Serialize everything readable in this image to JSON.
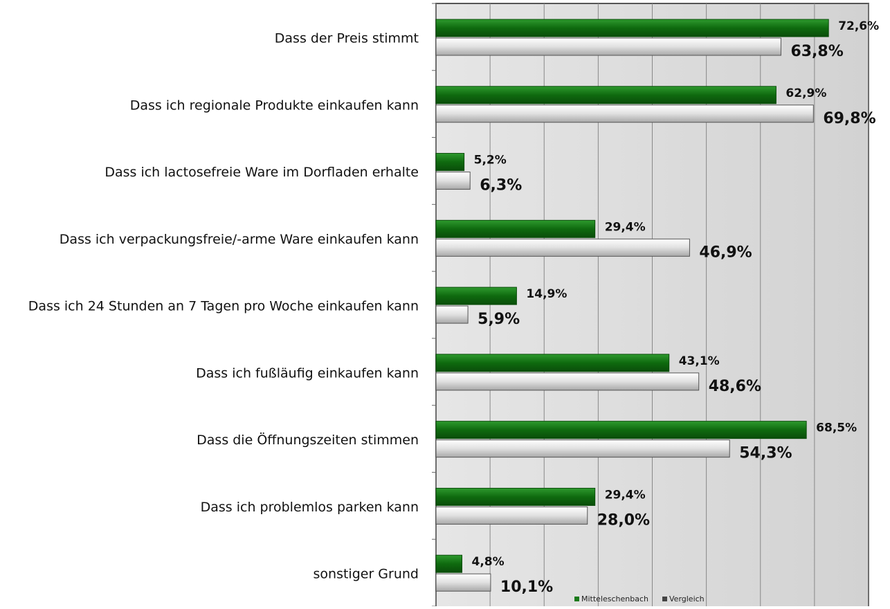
{
  "chart_data": {
    "type": "barh",
    "categories": [
      "Dass der Preis stimmt",
      "Dass ich regionale Produkte einkaufen kann",
      "Dass ich lactosefreie Ware im Dorfladen erhalte",
      "Dass ich verpackungsfreie/-arme Ware einkaufen kann",
      "Dass ich 24 Stunden an 7 Tagen pro Woche einkaufen kann",
      "Dass ich fußläufig einkaufen kann",
      "Dass die Öffnungszeiten stimmen",
      "Dass ich problemlos parken kann",
      "sonstiger Grund"
    ],
    "series": [
      {
        "name": "Mitteleschenbach",
        "color": "#1a7a1a",
        "values": [
          72.6,
          62.9,
          5.2,
          29.4,
          14.9,
          43.1,
          68.5,
          29.4,
          4.8
        ],
        "value_labels": [
          "72,6%",
          "62,9%",
          "5,2%",
          "29,4%",
          "14,9%",
          "43,1%",
          "68,5%",
          "29,4%",
          "4,8%"
        ]
      },
      {
        "name": "Vergleich",
        "color": "#d9d9d9",
        "values": [
          63.8,
          69.8,
          6.3,
          46.9,
          5.9,
          48.6,
          54.3,
          28.0,
          10.1
        ],
        "value_labels": [
          "63,8%",
          "69,8%",
          "6,3%",
          "46,9%",
          "5,9%",
          "48,6%",
          "54,3%",
          "28,0%",
          "10,1%"
        ]
      }
    ],
    "xlim": [
      0,
      80
    ],
    "xticks": [
      0,
      10,
      20,
      30,
      40,
      50,
      60,
      70,
      80
    ],
    "grid": true,
    "legend": "bottom-right"
  }
}
